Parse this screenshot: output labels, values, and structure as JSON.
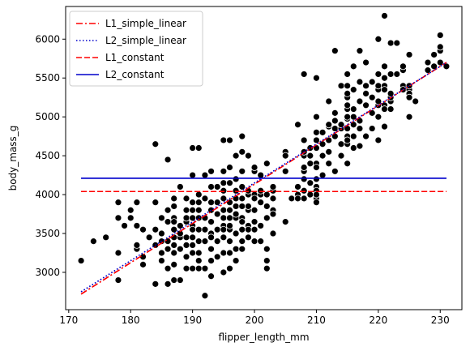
{
  "chart_data": {
    "type": "scatter",
    "title": "",
    "xlabel": "flipper_length_mm",
    "ylabel": "body_mass_g",
    "xlim": [
      169.5,
      233.5
    ],
    "ylim": [
      2520,
      6420
    ],
    "xticks": [
      170,
      180,
      190,
      200,
      210,
      220,
      230
    ],
    "yticks": [
      3000,
      3500,
      4000,
      4500,
      5000,
      5500,
      6000
    ],
    "grid": false,
    "legend_position": "top-left",
    "points": [
      [
        172,
        3150
      ],
      [
        174,
        3400
      ],
      [
        176,
        3450
      ],
      [
        178,
        3250
      ],
      [
        178,
        2900
      ],
      [
        178,
        3700
      ],
      [
        178,
        3900
      ],
      [
        179,
        3600
      ],
      [
        180,
        3800
      ],
      [
        180,
        3700
      ],
      [
        181,
        3300
      ],
      [
        181,
        3600
      ],
      [
        181,
        3900
      ],
      [
        181,
        3350
      ],
      [
        182,
        3200
      ],
      [
        182,
        3100
      ],
      [
        182,
        3550
      ],
      [
        183,
        3450
      ],
      [
        184,
        3550
      ],
      [
        184,
        3350
      ],
      [
        184,
        2850
      ],
      [
        184,
        3900
      ],
      [
        184,
        4650
      ],
      [
        185,
        3250
      ],
      [
        185,
        3500
      ],
      [
        185,
        3700
      ],
      [
        185,
        3150
      ],
      [
        185,
        3400
      ],
      [
        186,
        3400
      ],
      [
        186,
        3800
      ],
      [
        186,
        4450
      ],
      [
        186,
        3300
      ],
      [
        186,
        3050
      ],
      [
        186,
        3650
      ],
      [
        186,
        2850
      ],
      [
        187,
        3700
      ],
      [
        187,
        3450
      ],
      [
        187,
        3550
      ],
      [
        187,
        3250
      ],
      [
        187,
        3850
      ],
      [
        187,
        3100
      ],
      [
        187,
        2900
      ],
      [
        187,
        3650
      ],
      [
        187,
        3950
      ],
      [
        187,
        3350
      ],
      [
        188,
        3300
      ],
      [
        188,
        4100
      ],
      [
        188,
        3600
      ],
      [
        188,
        3450
      ],
      [
        188,
        2900
      ],
      [
        188,
        3500
      ],
      [
        189,
        3200
      ],
      [
        189,
        3650
      ],
      [
        189,
        3800
      ],
      [
        189,
        3350
      ],
      [
        189,
        3950
      ],
      [
        189,
        3050
      ],
      [
        189,
        3450
      ],
      [
        189,
        3700
      ],
      [
        190,
        3450
      ],
      [
        190,
        3900
      ],
      [
        190,
        4600
      ],
      [
        190,
        3600
      ],
      [
        190,
        3050
      ],
      [
        190,
        3550
      ],
      [
        190,
        3700
      ],
      [
        190,
        3350
      ],
      [
        190,
        3800
      ],
      [
        190,
        4250
      ],
      [
        190,
        3900
      ],
      [
        190,
        3250
      ],
      [
        191,
        3050
      ],
      [
        191,
        3700
      ],
      [
        191,
        4000
      ],
      [
        191,
        4600
      ],
      [
        191,
        3550
      ],
      [
        191,
        3800
      ],
      [
        191,
        3250
      ],
      [
        191,
        3400
      ],
      [
        191,
        3900
      ],
      [
        191,
        3150
      ],
      [
        192,
        2700
      ],
      [
        192,
        3050
      ],
      [
        192,
        3550
      ],
      [
        192,
        3950
      ],
      [
        192,
        3400
      ],
      [
        192,
        3700
      ],
      [
        192,
        4250
      ],
      [
        193,
        3300
      ],
      [
        193,
        3900
      ],
      [
        193,
        3650
      ],
      [
        193,
        3500
      ],
      [
        193,
        2950
      ],
      [
        193,
        3800
      ],
      [
        193,
        3150
      ],
      [
        193,
        4100
      ],
      [
        193,
        3450
      ],
      [
        193,
        4300
      ],
      [
        194,
        3550
      ],
      [
        194,
        3750
      ],
      [
        194,
        4100
      ],
      [
        194,
        3400
      ],
      [
        194,
        3900
      ],
      [
        194,
        3200
      ],
      [
        195,
        3600
      ],
      [
        195,
        3450
      ],
      [
        195,
        3800
      ],
      [
        195,
        3950
      ],
      [
        195,
        3700
      ],
      [
        195,
        4300
      ],
      [
        195,
        4050
      ],
      [
        195,
        3250
      ],
      [
        195,
        4150
      ],
      [
        195,
        3550
      ],
      [
        195,
        3000
      ],
      [
        195,
        4700
      ],
      [
        196,
        4700
      ],
      [
        196,
        3900
      ],
      [
        196,
        3550
      ],
      [
        196,
        3400
      ],
      [
        196,
        4150
      ],
      [
        196,
        3700
      ],
      [
        196,
        3250
      ],
      [
        196,
        4350
      ],
      [
        196,
        3800
      ],
      [
        196,
        3600
      ],
      [
        196,
        3050
      ],
      [
        197,
        3300
      ],
      [
        197,
        4500
      ],
      [
        197,
        3700
      ],
      [
        197,
        3950
      ],
      [
        197,
        3850
      ],
      [
        197,
        4200
      ],
      [
        197,
        4050
      ],
      [
        197,
        3750
      ],
      [
        197,
        3500
      ],
      [
        197,
        3150
      ],
      [
        198,
        3550
      ],
      [
        198,
        3700
      ],
      [
        198,
        3950
      ],
      [
        198,
        4100
      ],
      [
        198,
        3400
      ],
      [
        198,
        4300
      ],
      [
        198,
        3300
      ],
      [
        198,
        3650
      ],
      [
        198,
        4550
      ],
      [
        198,
        3850
      ],
      [
        198,
        4750
      ],
      [
        199,
        3450
      ],
      [
        199,
        3800
      ],
      [
        199,
        4000
      ],
      [
        199,
        3850
      ],
      [
        199,
        3600
      ],
      [
        199,
        4500
      ],
      [
        199,
        3550
      ],
      [
        199,
        4050
      ],
      [
        200,
        3400
      ],
      [
        200,
        3800
      ],
      [
        200,
        4300
      ],
      [
        200,
        3650
      ],
      [
        200,
        4000
      ],
      [
        200,
        3550
      ],
      [
        200,
        3950
      ],
      [
        200,
        4350
      ],
      [
        201,
        3600
      ],
      [
        201,
        3900
      ],
      [
        201,
        4000
      ],
      [
        201,
        3400
      ],
      [
        201,
        4050
      ],
      [
        201,
        4250
      ],
      [
        202,
        3850
      ],
      [
        202,
        3300
      ],
      [
        202,
        4000
      ],
      [
        202,
        3050
      ],
      [
        202,
        4400
      ],
      [
        202,
        3150
      ],
      [
        202,
        3700
      ],
      [
        203,
        4050
      ],
      [
        203,
        4100
      ],
      [
        203,
        3800
      ],
      [
        203,
        3950
      ],
      [
        203,
        3500
      ],
      [
        203,
        3750
      ],
      [
        205,
        4550
      ],
      [
        205,
        4500
      ],
      [
        205,
        4300
      ],
      [
        205,
        3650
      ],
      [
        206,
        3950
      ],
      [
        207,
        4100
      ],
      [
        207,
        4000
      ],
      [
        207,
        3950
      ],
      [
        207,
        4900
      ],
      [
        208,
        4050
      ],
      [
        208,
        5550
      ],
      [
        208,
        4700
      ],
      [
        208,
        4300
      ],
      [
        208,
        4500
      ],
      [
        208,
        3950
      ],
      [
        208,
        4200
      ],
      [
        208,
        4550
      ],
      [
        208,
        4350
      ],
      [
        209,
        4600
      ],
      [
        209,
        4150
      ],
      [
        209,
        4400
      ],
      [
        209,
        4000
      ],
      [
        209,
        4500
      ],
      [
        210,
        4200
      ],
      [
        210,
        5000
      ],
      [
        210,
        3950
      ],
      [
        210,
        4700
      ],
      [
        210,
        4800
      ],
      [
        210,
        4100
      ],
      [
        210,
        5500
      ],
      [
        210,
        4400
      ],
      [
        210,
        4350
      ],
      [
        210,
        4600
      ],
      [
        210,
        4050
      ],
      [
        210,
        3900
      ],
      [
        210,
        4000
      ],
      [
        211,
        4800
      ],
      [
        211,
        4500
      ],
      [
        211,
        4650
      ],
      [
        211,
        4250
      ],
      [
        212,
        4700
      ],
      [
        212,
        4875
      ],
      [
        212,
        4400
      ],
      [
        212,
        5200
      ],
      [
        212,
        4550
      ],
      [
        212,
        4900
      ],
      [
        213,
        4300
      ],
      [
        213,
        5850
      ],
      [
        213,
        4750
      ],
      [
        213,
        4850
      ],
      [
        213,
        4950
      ],
      [
        213,
        5050
      ],
      [
        214,
        4850
      ],
      [
        214,
        4650
      ],
      [
        214,
        5400
      ],
      [
        214,
        4900
      ],
      [
        214,
        4500
      ],
      [
        215,
        4400
      ],
      [
        215,
        4750
      ],
      [
        215,
        5400
      ],
      [
        215,
        5100
      ],
      [
        215,
        4975
      ],
      [
        215,
        5000
      ],
      [
        215,
        5250
      ],
      [
        215,
        5550
      ],
      [
        215,
        5300
      ],
      [
        215,
        4650
      ],
      [
        215,
        4850
      ],
      [
        215,
        4700
      ],
      [
        215,
        5150
      ],
      [
        216,
        4600
      ],
      [
        216,
        4750
      ],
      [
        216,
        5000
      ],
      [
        216,
        5100
      ],
      [
        216,
        5350
      ],
      [
        216,
        5650
      ],
      [
        216,
        4900
      ],
      [
        217,
        4950
      ],
      [
        217,
        5200
      ],
      [
        217,
        4850
      ],
      [
        217,
        4625
      ],
      [
        217,
        5850
      ],
      [
        217,
        5450
      ],
      [
        218,
        5150
      ],
      [
        218,
        5300
      ],
      [
        218,
        5700
      ],
      [
        218,
        4750
      ],
      [
        218,
        5400
      ],
      [
        219,
        4850
      ],
      [
        219,
        5250
      ],
      [
        219,
        5450
      ],
      [
        219,
        5050
      ],
      [
        220,
        5000
      ],
      [
        220,
        4700
      ],
      [
        220,
        5350
      ],
      [
        220,
        6000
      ],
      [
        220,
        5400
      ],
      [
        220,
        5150
      ],
      [
        220,
        5550
      ],
      [
        220,
        5200
      ],
      [
        221,
        6300
      ],
      [
        221,
        5400
      ],
      [
        221,
        5500
      ],
      [
        221,
        5350
      ],
      [
        221,
        5150
      ],
      [
        221,
        5100
      ],
      [
        221,
        5650
      ],
      [
        221,
        4875
      ],
      [
        222,
        5100
      ],
      [
        222,
        5550
      ],
      [
        222,
        5950
      ],
      [
        222,
        5200
      ],
      [
        222,
        5250
      ],
      [
        222,
        5300
      ],
      [
        223,
        5550
      ],
      [
        223,
        5950
      ],
      [
        224,
        5400
      ],
      [
        224,
        5600
      ],
      [
        224,
        5350
      ],
      [
        224,
        5650
      ],
      [
        225,
        5000
      ],
      [
        225,
        5350
      ],
      [
        225,
        5400
      ],
      [
        225,
        5800
      ],
      [
        225,
        5300
      ],
      [
        225,
        5250
      ],
      [
        226,
        5200
      ],
      [
        228,
        5600
      ],
      [
        228,
        5700
      ],
      [
        229,
        5650
      ],
      [
        229,
        5800
      ],
      [
        230,
        5700
      ],
      [
        230,
        6050
      ],
      [
        230,
        5850
      ],
      [
        230,
        5900
      ],
      [
        231,
        5650
      ]
    ],
    "lines": [
      {
        "name": "L1_simple_linear",
        "color": "#ff0000",
        "style": "dashdot",
        "x": [
          172,
          231
        ],
        "y": [
          2720,
          5700
        ]
      },
      {
        "name": "L2_simple_linear",
        "color": "#0000cc",
        "style": "dotted",
        "x": [
          172,
          231
        ],
        "y": [
          2750,
          5700
        ]
      },
      {
        "name": "L1_constant",
        "color": "#ff0000",
        "style": "dashed",
        "x": [
          172,
          231
        ],
        "y": [
          4040,
          4040
        ]
      },
      {
        "name": "L2_constant",
        "color": "#0000cc",
        "style": "solid",
        "x": [
          172,
          231
        ],
        "y": [
          4210,
          4210
        ]
      }
    ]
  }
}
